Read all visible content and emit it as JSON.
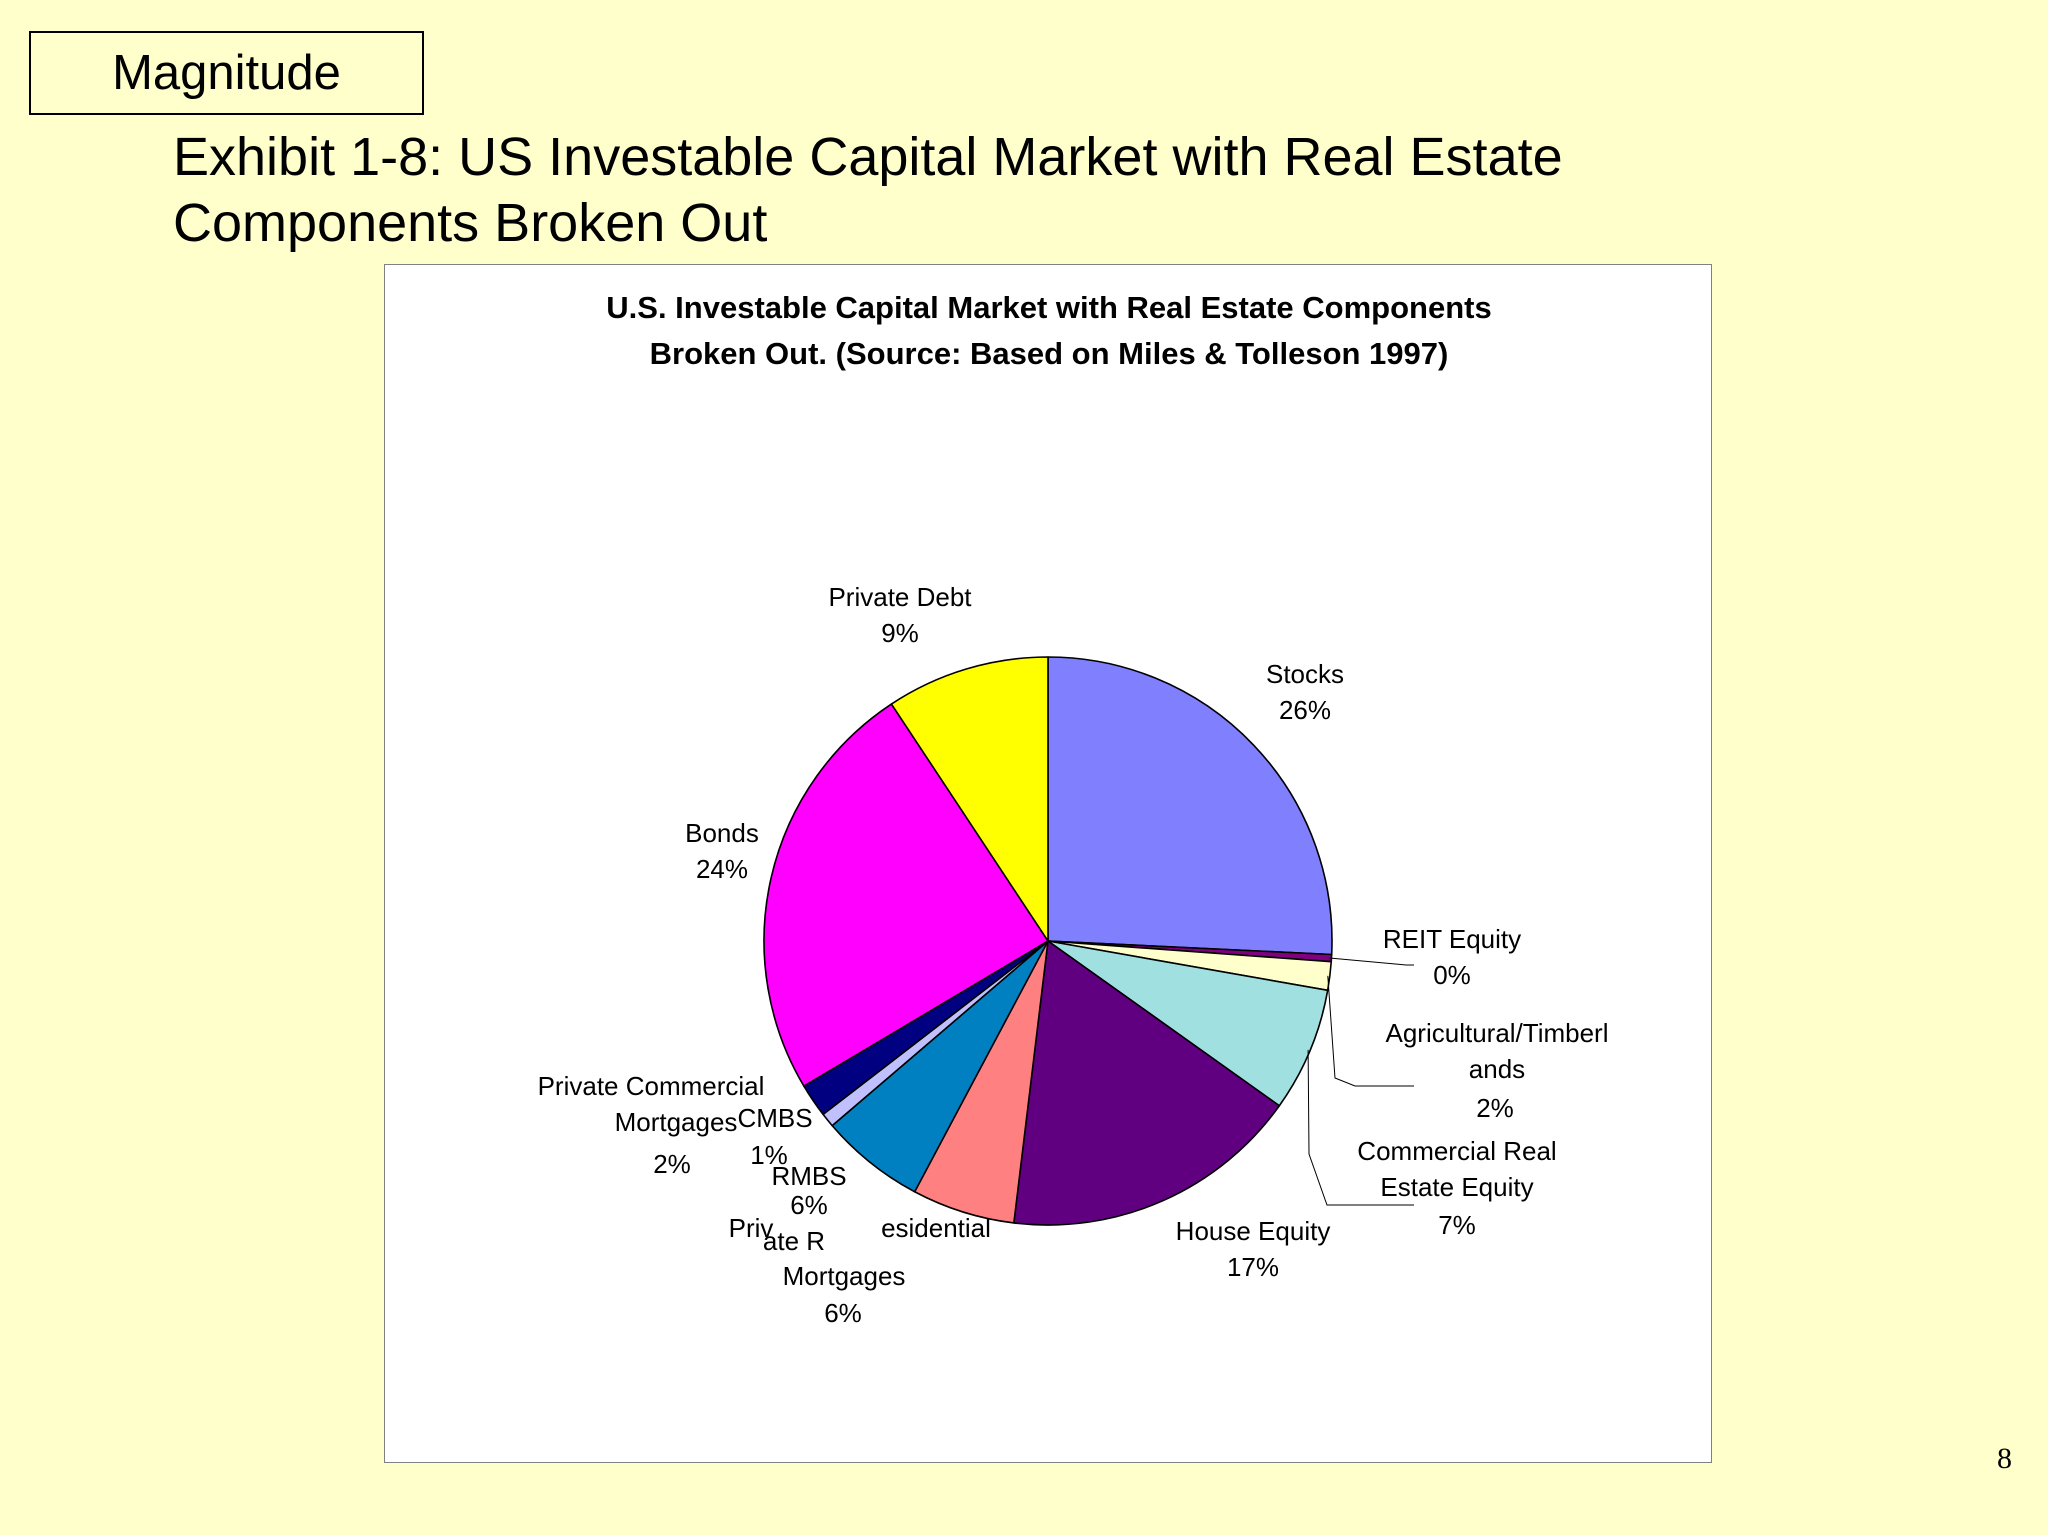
{
  "tag": "Magnitude",
  "slide": {
    "title_line1": "Exhibit 1-8: US Investable Capital Market with Real Estate",
    "title_line2": "Components Broken Out",
    "page_number": "8"
  },
  "chart_data": {
    "type": "pie",
    "title": "U.S. Investable Capital Market with Real Estate Components Broken Out. (Source: Based on Miles & Tolleson 1997)",
    "title_lines": [
      "U.S. Investable Capital Market with Real Estate Components",
      "Broken Out. (Source: Based on Miles & Tolleson 1997)"
    ],
    "start": "top, clockwise",
    "slices": [
      {
        "name": "Stocks",
        "value": 25.5,
        "pct_label": "26%",
        "color": "#8080ff",
        "label_lines": [
          "Stocks",
          "26%"
        ]
      },
      {
        "name": "REIT Equity",
        "value": 0.4,
        "pct_label": "0%",
        "color": "#800080",
        "label_lines": [
          "REIT Equity",
          "0%"
        ]
      },
      {
        "name": "Agricultural/Timberlands",
        "value": 1.6,
        "pct_label": "2%",
        "color": "#ffffcc",
        "label_lines": [
          "Agricultural/Timberl",
          "ands",
          "2%"
        ]
      },
      {
        "name": "Commercial Real Estate Equity",
        "value": 7.0,
        "pct_label": "7%",
        "color": "#a0e0e0",
        "label_lines": [
          "Commercial Real",
          "Estate  Equity",
          "7%"
        ]
      },
      {
        "name": "House Equity",
        "value": 16.9,
        "pct_label": "17%",
        "color": "#600080",
        "label_lines": [
          "House Equity",
          "17%"
        ]
      },
      {
        "name": "Private Residential Mortgages",
        "value": 5.8,
        "pct_label": "6%",
        "color": "#ff8080",
        "label_lines": [
          "Priv",
          "ate R",
          "esidential",
          "Mortgages",
          "6%"
        ]
      },
      {
        "name": "RMBS",
        "value": 5.9,
        "pct_label": "6%",
        "color": "#0080c0",
        "label_lines": [
          "RMBS",
          "6%"
        ]
      },
      {
        "name": "CMBS",
        "value": 0.8,
        "pct_label": "1%",
        "color": "#c0c0ff",
        "label_lines": [
          "CMBS",
          "1%"
        ]
      },
      {
        "name": "Private Commercial Mortgages",
        "value": 1.9,
        "pct_label": "2%",
        "color": "#000080",
        "label_lines": [
          "Private Commercial",
          "Mortgages",
          "2%"
        ]
      },
      {
        "name": "Bonds",
        "value": 24.0,
        "pct_label": "24%",
        "color": "#ff00ff",
        "label_lines": [
          "Bonds",
          "24%"
        ]
      },
      {
        "name": "Private Debt",
        "value": 9.2,
        "pct_label": "9%",
        "color": "#ffff00",
        "label_lines": [
          "Private Debt",
          "9%"
        ]
      }
    ]
  }
}
